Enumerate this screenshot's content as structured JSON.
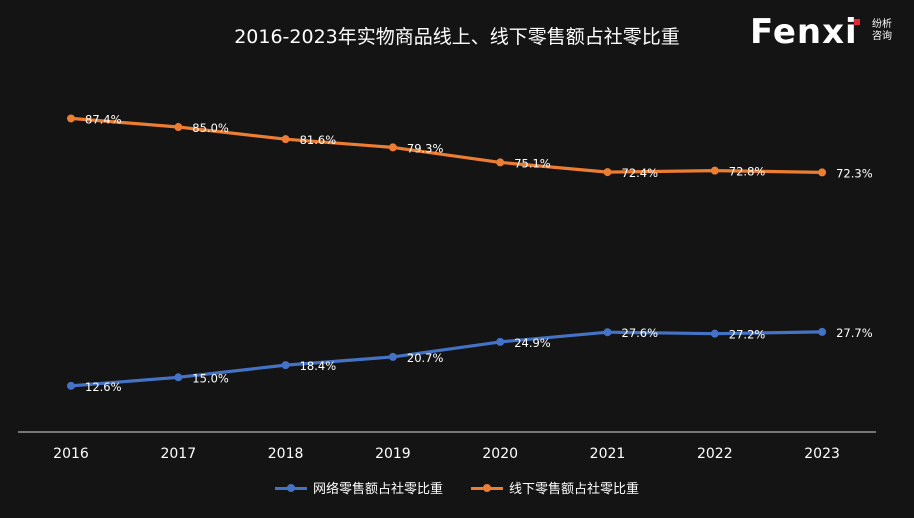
{
  "logo": {
    "wordmark": "Fenx",
    "wordmark_i": "i",
    "tag_line1": "纷析",
    "tag_line2": "咨询",
    "accent": "#e0263a"
  },
  "chart_data": {
    "type": "line",
    "title": "2016-2023年实物商品线上、线下零售额占社零比重",
    "categories": [
      "2016",
      "2017",
      "2018",
      "2019",
      "2020",
      "2021",
      "2022",
      "2023"
    ],
    "series": [
      {
        "name": "网络零售额占社零比重",
        "color": "#4472c4",
        "values": [
          12.6,
          15.0,
          18.4,
          20.7,
          24.9,
          27.6,
          27.2,
          27.7
        ],
        "labels": [
          "12.6%",
          "15.0%",
          "18.4%",
          "20.7%",
          "24.9%",
          "27.6%",
          "27.2%",
          "27.7%"
        ]
      },
      {
        "name": "线下零售额占社零比重",
        "color": "#ed7d31",
        "values": [
          87.4,
          85.0,
          81.6,
          79.3,
          75.1,
          72.4,
          72.8,
          72.3
        ],
        "labels": [
          "87.4%",
          "85.0%",
          "81.6%",
          "79.3%",
          "75.1%",
          "72.4%",
          "72.8%",
          "72.3%"
        ]
      }
    ],
    "xlabel": "",
    "ylabel": "",
    "ylim": [
      0,
      100
    ],
    "grid": false,
    "legend": "bottom",
    "background": "#141414",
    "axis_color": "#d9d9d9"
  }
}
